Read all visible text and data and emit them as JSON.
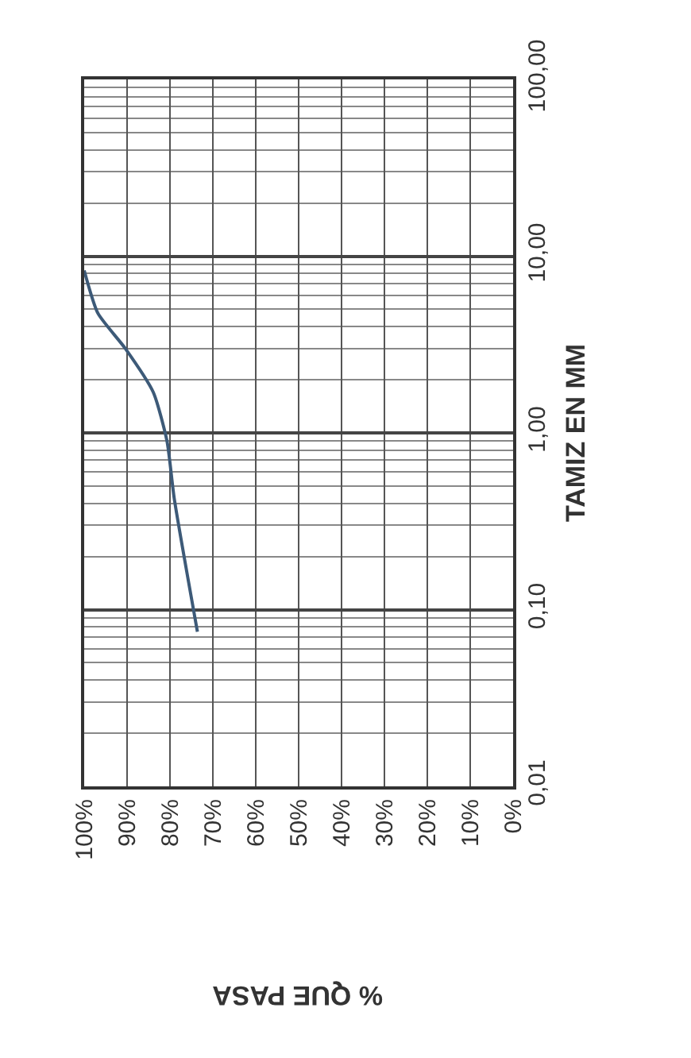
{
  "chart_data": {
    "type": "line",
    "xlabel": "% QUE PASA",
    "ylabel": "TAMIZ EN MM",
    "log": "y",
    "grid": true,
    "marker": "none",
    "line_style": "solid",
    "ylim": [
      0.01,
      100
    ],
    "yticks": [
      {
        "value": 0.01,
        "label": "0,01"
      },
      {
        "value": 0.1,
        "label": "0,10"
      },
      {
        "value": 1,
        "label": "1,00"
      },
      {
        "value": 10,
        "label": "10,00"
      },
      {
        "value": 100,
        "label": "100,00"
      }
    ],
    "xlim": [
      100,
      0
    ],
    "xticks": [
      {
        "value": 0,
        "label": "0%"
      },
      {
        "value": 10,
        "label": "10%"
      },
      {
        "value": 20,
        "label": "20%"
      },
      {
        "value": 30,
        "label": "30%"
      },
      {
        "value": 40,
        "label": "40%"
      },
      {
        "value": 50,
        "label": "50%"
      },
      {
        "value": 60,
        "label": "60%"
      },
      {
        "value": 70,
        "label": "70%"
      },
      {
        "value": 80,
        "label": "80%"
      },
      {
        "value": 90,
        "label": "90%"
      },
      {
        "value": 100,
        "label": "100%"
      }
    ],
    "x": [
      73.6,
      79,
      80.7,
      83.9,
      90.4,
      96.8,
      100
    ],
    "series": [
      {
        "color": "#3d5a78",
        "values": [
          0.075,
          0.425,
          0.9,
          1.7,
          3.0,
          4.75,
          8.3
        ]
      }
    ]
  }
}
